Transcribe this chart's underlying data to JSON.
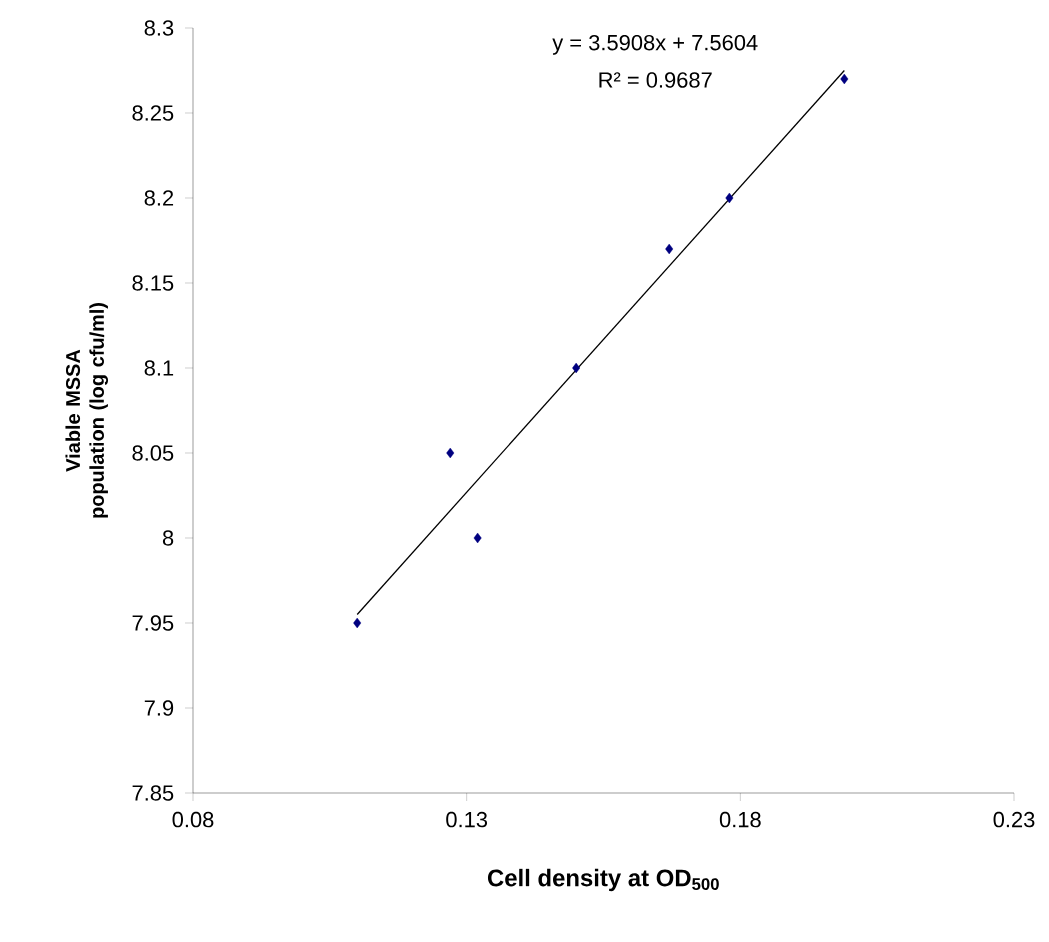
{
  "chart_data": {
    "type": "scatter",
    "xlabel": "Cell density at OD$_{500}$",
    "ylabel": "Viable MSSA population (log cfu/ml)",
    "annotations": [
      "y = 3.5908x + 7.5604",
      "R² = 0.9687"
    ],
    "marker": "diamond",
    "grid": false,
    "xlim": [
      0.08,
      0.23
    ],
    "ylim": [
      7.85,
      8.3
    ],
    "xticks": [
      0.08,
      0.13,
      0.18,
      0.23
    ],
    "yticks": [
      7.85,
      7.9,
      7.95,
      8,
      8.05,
      8.1,
      8.15,
      8.2,
      8.25,
      8.3
    ],
    "series": [
      {
        "color": "#000080",
        "x": [
          0.11,
          0.127,
          0.132,
          0.15,
          0.167,
          0.178,
          0.199
        ],
        "values": [
          7.95,
          8.05,
          8.0,
          8.1,
          8.17,
          8.2,
          8.27
        ]
      },
      {
        "type": "line",
        "color": "#000000",
        "marker": "none",
        "x": [
          0.11,
          0.199
        ],
        "values": [
          7.955,
          8.275
        ]
      }
    ]
  }
}
